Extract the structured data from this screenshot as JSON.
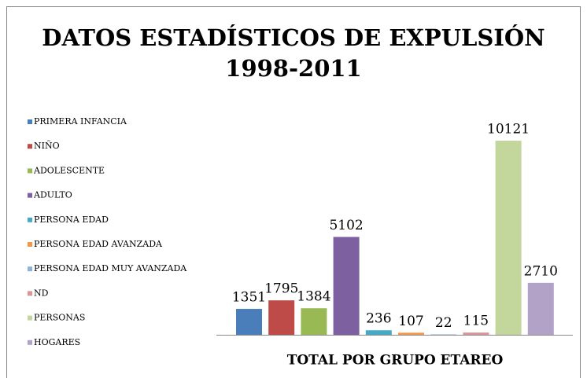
{
  "chart_data": {
    "type": "bar",
    "title": [
      "DATOS ESTADÍSTICOS DE EXPULSIÓN",
      "1998-2011"
    ],
    "categories": [
      "TOTAL POR GRUPO ETAREO"
    ],
    "legend": "left",
    "series": [
      {
        "name": "PRIMERA INFANCIA",
        "color": "#4a7ebb",
        "values": [
          1351
        ]
      },
      {
        "name": "NIÑO",
        "color": "#be4b48",
        "values": [
          1795
        ]
      },
      {
        "name": "ADOLESCENTE",
        "color": "#98b954",
        "values": [
          1384
        ]
      },
      {
        "name": "ADULTO",
        "color": "#7d60a0",
        "values": [
          5102
        ]
      },
      {
        "name": "PERSONA EDAD",
        "color": "#46aac5",
        "values": [
          236
        ]
      },
      {
        "name": "PERSONA EDAD AVANZADA",
        "color": "#f79646",
        "values": [
          107
        ]
      },
      {
        "name": "PERSONA EDAD MUY AVANZADA",
        "color": "#8fb2d9",
        "values": [
          22
        ]
      },
      {
        "name": "ND",
        "color": "#d99694",
        "values": [
          115
        ]
      },
      {
        "name": "PERSONAS",
        "color": "#c3d69b",
        "values": [
          10121
        ]
      },
      {
        "name": "HOGARES",
        "color": "#b3a2c7",
        "values": [
          2710
        ]
      }
    ]
  }
}
